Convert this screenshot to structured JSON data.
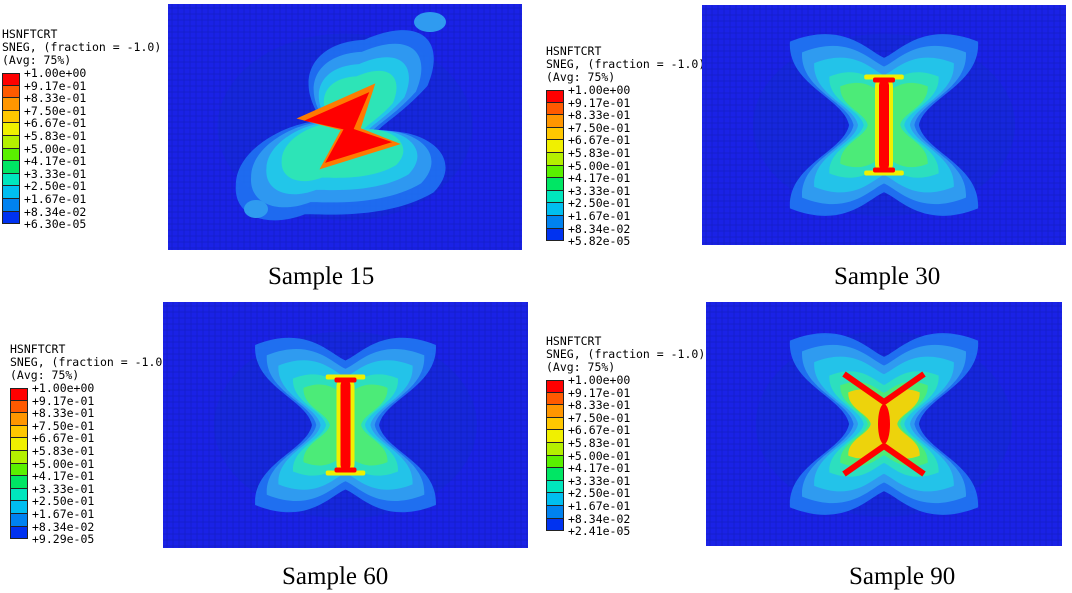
{
  "legend_header": [
    "HSNFTCRT",
    "SNEG, (fraction = -1.0)",
    "(Avg: 75%)"
  ],
  "color_scale": [
    "#ff0000",
    "#ff5a00",
    "#ff9600",
    "#ffc800",
    "#f0f000",
    "#b4f000",
    "#5af000",
    "#00e664",
    "#00e6be",
    "#00bef0",
    "#0082f0",
    "#0032f0"
  ],
  "panels": [
    {
      "caption": "Sample 15",
      "ticks": [
        "+1.00e+00",
        "+9.17e-01",
        "+8.33e-01",
        "+7.50e-01",
        "+6.67e-01",
        "+5.83e-01",
        "+5.00e-01",
        "+4.17e-01",
        "+3.33e-01",
        "+2.50e-01",
        "+1.67e-01",
        "+8.34e-02",
        "+6.30e-05"
      ]
    },
    {
      "caption": "Sample 30",
      "ticks": [
        "+1.00e+00",
        "+9.17e-01",
        "+8.33e-01",
        "+7.50e-01",
        "+6.67e-01",
        "+5.83e-01",
        "+5.00e-01",
        "+4.17e-01",
        "+3.33e-01",
        "+2.50e-01",
        "+1.67e-01",
        "+8.34e-02",
        "+5.82e-05"
      ]
    },
    {
      "caption": "Sample 60",
      "ticks": [
        "+1.00e+00",
        "+9.17e-01",
        "+8.33e-01",
        "+7.50e-01",
        "+6.67e-01",
        "+5.83e-01",
        "+5.00e-01",
        "+4.17e-01",
        "+3.33e-01",
        "+2.50e-01",
        "+1.67e-01",
        "+8.34e-02",
        "+9.29e-05"
      ]
    },
    {
      "caption": "Sample 90",
      "ticks": [
        "+1.00e+00",
        "+9.17e-01",
        "+8.33e-01",
        "+7.50e-01",
        "+6.67e-01",
        "+5.83e-01",
        "+5.00e-01",
        "+4.17e-01",
        "+3.33e-01",
        "+2.50e-01",
        "+1.67e-01",
        "+8.34e-02",
        "+2.41e-05"
      ]
    }
  ]
}
